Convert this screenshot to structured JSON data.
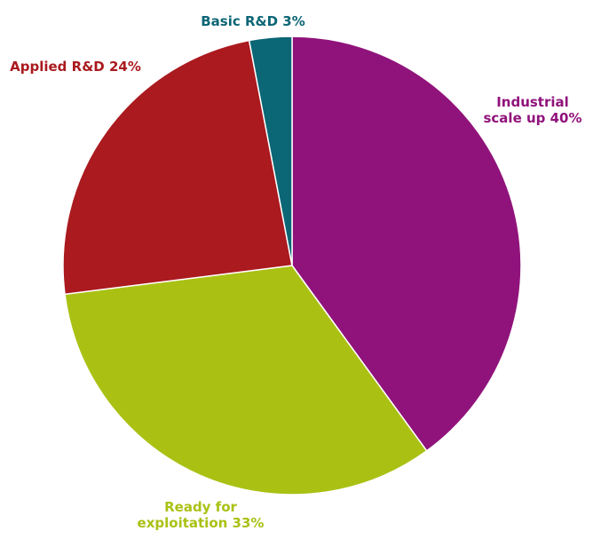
{
  "chart_data": {
    "type": "pie",
    "title": "",
    "start_angle_deg": 0,
    "direction": "clockwise",
    "slices": [
      {
        "name": "Industrial scale up",
        "value": 40,
        "label_lines": [
          "Industrial",
          "scale up 40%"
        ],
        "color": "#90137b"
      },
      {
        "name": "Ready for exploitation",
        "value": 33,
        "label_lines": [
          "Ready for",
          "exploitation 33%"
        ],
        "color": "#aac114"
      },
      {
        "name": "Applied R&D",
        "value": 24,
        "label_lines": [
          "Applied R&D 24%"
        ],
        "color": "#aa1a1e"
      },
      {
        "name": "Basic R&D",
        "value": 3,
        "label_lines": [
          "Basic R&D 3%"
        ],
        "color": "#0b6675"
      }
    ]
  }
}
